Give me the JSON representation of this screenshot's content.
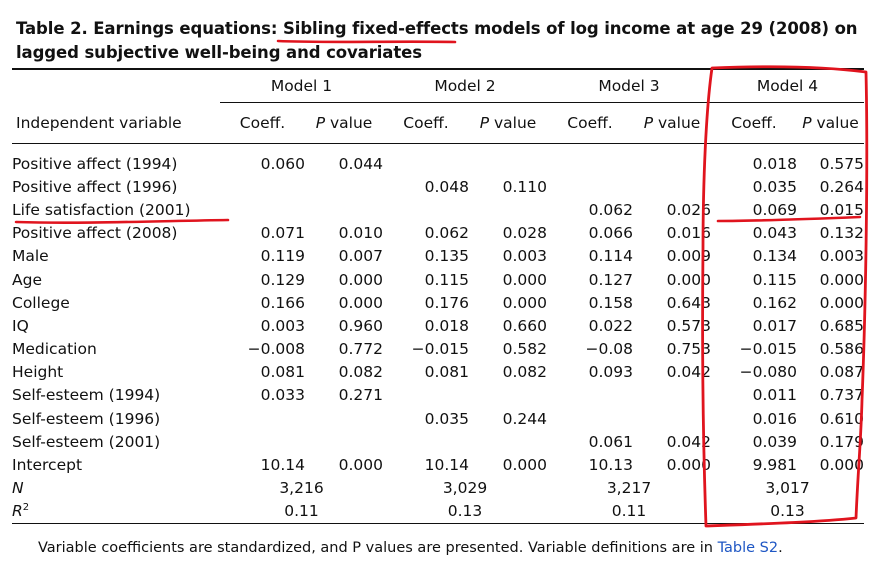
{
  "title": {
    "lead": "Table 2.  Earnings equations: ",
    "underlined": "Sibling fixed-effects",
    "rest": " models of log income at age 29 (2008) on lagged subjective well-being and covariates"
  },
  "table": {
    "models": [
      "Model 1",
      "Model 2",
      "Model 3",
      "Model 4"
    ],
    "var_header": "Independent variable",
    "coeff_header": "Coeff.",
    "p_prefix": "P",
    "p_suffix": " value",
    "rows": [
      {
        "label": "Positive affect (1994)",
        "cells": [
          "0.060",
          "0.044",
          "",
          "",
          "",
          "",
          "0.018",
          "0.575"
        ]
      },
      {
        "label": "Positive affect (1996)",
        "cells": [
          "",
          "",
          "0.048",
          "0.110",
          "",
          "",
          "0.035",
          "0.264"
        ]
      },
      {
        "label": "Life satisfaction (2001)",
        "cells": [
          "",
          "",
          "",
          "",
          "0.062",
          "0.026",
          "0.069",
          "0.015"
        ]
      },
      {
        "label": "Positive affect (2008)",
        "cells": [
          "0.071",
          "0.010",
          "0.062",
          "0.028",
          "0.066",
          "0.016",
          "0.043",
          "0.132"
        ]
      },
      {
        "label": "Male",
        "cells": [
          "0.119",
          "0.007",
          "0.135",
          "0.003",
          "0.114",
          "0.009",
          "0.134",
          "0.003"
        ]
      },
      {
        "label": "Age",
        "cells": [
          "0.129",
          "0.000",
          "0.115",
          "0.000",
          "0.127",
          "0.000",
          "0.115",
          "0.000"
        ]
      },
      {
        "label": "College",
        "cells": [
          "0.166",
          "0.000",
          "0.176",
          "0.000",
          "0.158",
          "0.643",
          "0.162",
          "0.000"
        ]
      },
      {
        "label": "IQ",
        "cells": [
          "0.003",
          "0.960",
          "0.018",
          "0.660",
          "0.022",
          "0.573",
          "0.017",
          "0.685"
        ]
      },
      {
        "label": "Medication",
        "cells": [
          "−0.008",
          "0.772",
          "−0.015",
          "0.582",
          "−0.08",
          "0.753",
          "−0.015",
          "0.586"
        ]
      },
      {
        "label": "Height",
        "cells": [
          "0.081",
          "0.082",
          "0.081",
          "0.082",
          "0.093",
          "0.042",
          "−0.080",
          "0.087"
        ]
      },
      {
        "label": "Self-esteem (1994)",
        "cells": [
          "0.033",
          "0.271",
          "",
          "",
          "",
          "",
          "0.011",
          "0.737"
        ]
      },
      {
        "label": "Self-esteem (1996)",
        "cells": [
          "",
          "",
          "0.035",
          "0.244",
          "",
          "",
          "0.016",
          "0.610"
        ]
      },
      {
        "label": "Self-esteem (2001)",
        "cells": [
          "",
          "",
          "",
          "",
          "0.061",
          "0.042",
          "0.039",
          "0.179"
        ]
      },
      {
        "label": "Intercept",
        "cells": [
          "10.14",
          "0.000",
          "10.14",
          "0.000",
          "10.13",
          "0.000",
          "9.981",
          "0.000"
        ]
      }
    ],
    "n_row": {
      "label": "N",
      "values": [
        "3,216",
        "3,029",
        "3,217",
        "3,017"
      ]
    },
    "r2_row": {
      "label_base": "R",
      "label_sup": "2",
      "values": [
        "0.11",
        "0.13",
        "0.11",
        "0.13"
      ]
    }
  },
  "footnote": {
    "text": "Variable coefficients are standardized, and P values are presented. Variable definitions are in ",
    "link": "Table S2",
    "end": "."
  },
  "annotation_color": "#e0141e"
}
